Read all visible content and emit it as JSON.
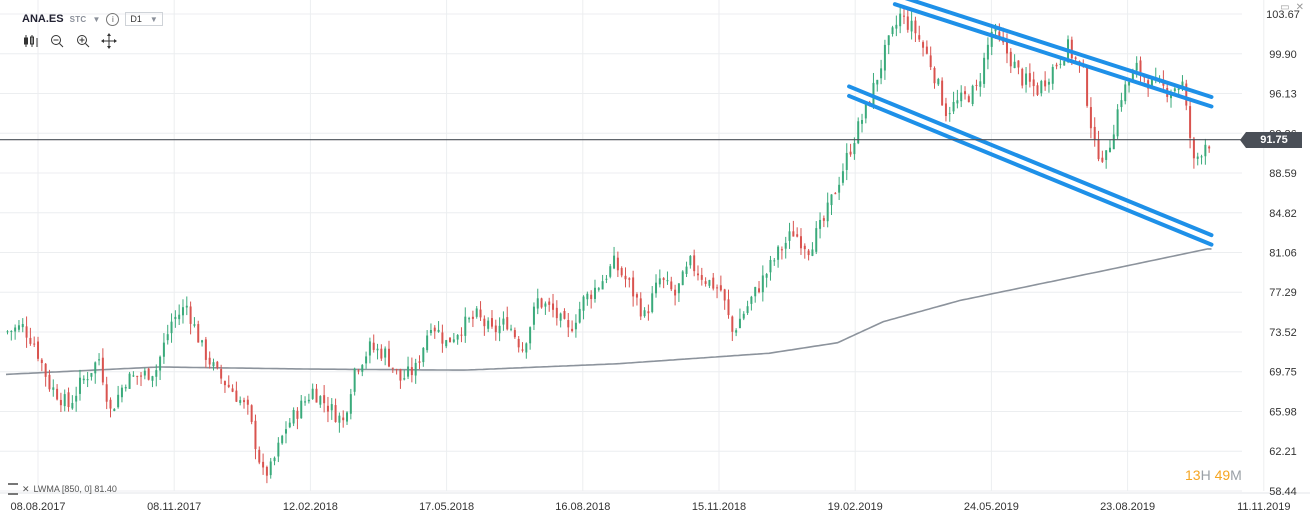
{
  "header": {
    "symbol": "ANA.ES",
    "instrument_type": "STC",
    "timeframe": "D1",
    "info_icon": "info-icon",
    "tools": [
      "candles-icon",
      "zoom-out-icon",
      "zoom-in-icon",
      "crosshair-icon"
    ]
  },
  "window_controls": [
    "maximize-icon",
    "close-icon"
  ],
  "timer": {
    "hours": "13",
    "h_unit": "H",
    "minutes": "49",
    "m_unit": "M"
  },
  "indicator": {
    "label": "LWMA [850, 0] 81.40"
  },
  "current_price": {
    "label": "91.75",
    "value": 91.75
  },
  "colors": {
    "up": "#3aaa7b",
    "down": "#d9534f",
    "channel": "#1e90e8",
    "lwma": "#8c939c",
    "price_line": "#4a4f57"
  },
  "chart_data": {
    "type": "candlestick",
    "x_labels": [
      "08.08.2017",
      "08.11.2017",
      "12.02.2018",
      "17.05.2018",
      "16.08.2018",
      "15.11.2018",
      "19.02.2019",
      "24.05.2019",
      "23.08.2019",
      "11.11.2019"
    ],
    "y_ticks": [
      103.67,
      99.9,
      96.13,
      92.36,
      88.59,
      84.82,
      81.06,
      77.29,
      73.52,
      69.75,
      65.98,
      62.21,
      58.44
    ],
    "y_tick_labels": [
      "103.67",
      "99.90",
      "96.13",
      "92.36",
      "88.59",
      "84.82",
      "81.06",
      "77.29",
      "73.52",
      "69.75",
      "65.98",
      "62.21",
      "58.44"
    ],
    "y_range": [
      58.44,
      103.67
    ],
    "price_anchors": [
      [
        0,
        73.5
      ],
      [
        5,
        74.0
      ],
      [
        8,
        72.5
      ],
      [
        12,
        68.5
      ],
      [
        17,
        66.5
      ],
      [
        20,
        68.5
      ],
      [
        25,
        71.0
      ],
      [
        28,
        66.0
      ],
      [
        32,
        69.0
      ],
      [
        37,
        69.5
      ],
      [
        40,
        70.0
      ],
      [
        44,
        74.5
      ],
      [
        48,
        76.0
      ],
      [
        52,
        72.0
      ],
      [
        56,
        69.5
      ],
      [
        60,
        68.0
      ],
      [
        64,
        66.0
      ],
      [
        68,
        60.0
      ],
      [
        70,
        60.5
      ],
      [
        74,
        64.5
      ],
      [
        78,
        66.5
      ],
      [
        81,
        68.0
      ],
      [
        85,
        66.5
      ],
      [
        89,
        65.0
      ],
      [
        92,
        70.0
      ],
      [
        96,
        72.0
      ],
      [
        100,
        71.5
      ],
      [
        104,
        69.0
      ],
      [
        108,
        70.0
      ],
      [
        112,
        74.5
      ],
      [
        116,
        72.5
      ],
      [
        120,
        74.0
      ],
      [
        124,
        75.0
      ],
      [
        128,
        73.5
      ],
      [
        132,
        74.5
      ],
      [
        136,
        72.0
      ],
      [
        140,
        76.5
      ],
      [
        144,
        75.5
      ],
      [
        148,
        73.5
      ],
      [
        152,
        76.5
      ],
      [
        156,
        78.0
      ],
      [
        160,
        80.0
      ],
      [
        164,
        78.0
      ],
      [
        168,
        75.0
      ],
      [
        172,
        78.5
      ],
      [
        176,
        77.0
      ],
      [
        180,
        80.0
      ],
      [
        184,
        78.5
      ],
      [
        188,
        77.5
      ],
      [
        191,
        73.5
      ],
      [
        195,
        76.0
      ],
      [
        199,
        78.5
      ],
      [
        203,
        81.0
      ],
      [
        207,
        83.0
      ],
      [
        211,
        81.5
      ],
      [
        215,
        84.0
      ],
      [
        219,
        88.0
      ],
      [
        223,
        92.0
      ],
      [
        227,
        95.5
      ],
      [
        231,
        100.0
      ],
      [
        235,
        103.5
      ],
      [
        239,
        102.0
      ],
      [
        243,
        99.0
      ],
      [
        247,
        94.5
      ],
      [
        251,
        95.5
      ],
      [
        255,
        96.5
      ],
      [
        259,
        102.0
      ],
      [
        263,
        100.0
      ],
      [
        267,
        97.5
      ],
      [
        271,
        96.5
      ],
      [
        275,
        98.5
      ],
      [
        279,
        100.5
      ],
      [
        283,
        98.0
      ],
      [
        286,
        91.0
      ],
      [
        289,
        90.0
      ],
      [
        293,
        96.0
      ],
      [
        297,
        98.5
      ],
      [
        301,
        97.0
      ],
      [
        305,
        96.5
      ],
      [
        309,
        97.0
      ],
      [
        312,
        89.5
      ],
      [
        315,
        91.5
      ]
    ],
    "lwma_anchors": [
      [
        0,
        69.5
      ],
      [
        40,
        70.2
      ],
      [
        80,
        70.0
      ],
      [
        120,
        69.9
      ],
      [
        160,
        70.5
      ],
      [
        200,
        71.5
      ],
      [
        218,
        72.5
      ],
      [
        230,
        74.5
      ],
      [
        250,
        76.5
      ],
      [
        270,
        78.0
      ],
      [
        290,
        79.5
      ],
      [
        315,
        81.4
      ]
    ],
    "channel_upper": {
      "from": [
        233,
        105.5
      ],
      "to": [
        316,
        95.8
      ]
    },
    "channel_lower": {
      "from": [
        221,
        96.8
      ],
      "to": [
        316,
        82.7
      ]
    },
    "channel_band_offset": 0.9,
    "bar_count": 316,
    "grid": true
  }
}
